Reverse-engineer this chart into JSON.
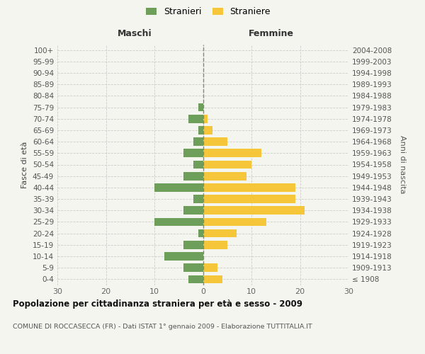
{
  "age_groups": [
    "100+",
    "95-99",
    "90-94",
    "85-89",
    "80-84",
    "75-79",
    "70-74",
    "65-69",
    "60-64",
    "55-59",
    "50-54",
    "45-49",
    "40-44",
    "35-39",
    "30-34",
    "25-29",
    "20-24",
    "15-19",
    "10-14",
    "5-9",
    "0-4"
  ],
  "birth_years": [
    "≤ 1908",
    "1909-1913",
    "1914-1918",
    "1919-1923",
    "1924-1928",
    "1929-1933",
    "1934-1938",
    "1939-1943",
    "1944-1948",
    "1949-1953",
    "1954-1958",
    "1959-1963",
    "1964-1968",
    "1969-1973",
    "1974-1978",
    "1979-1983",
    "1984-1988",
    "1989-1993",
    "1994-1998",
    "1999-2003",
    "2004-2008"
  ],
  "maschi": [
    0,
    0,
    0,
    0,
    0,
    1,
    3,
    1,
    2,
    4,
    2,
    4,
    10,
    2,
    4,
    10,
    1,
    4,
    8,
    4,
    3
  ],
  "femmine": [
    0,
    0,
    0,
    0,
    0,
    0,
    1,
    2,
    5,
    12,
    10,
    9,
    19,
    19,
    21,
    13,
    7,
    5,
    0,
    3,
    4
  ],
  "maschi_color": "#6d9e5a",
  "femmine_color": "#f5c53a",
  "background_color": "#f5f5f0",
  "grid_color": "#cccccc",
  "dashed_color": "#888866",
  "title": "Popolazione per cittadinanza straniera per età e sesso - 2009",
  "subtitle": "COMUNE DI ROCCASECCA (FR) - Dati ISTAT 1° gennaio 2009 - Elaborazione TUTTITALIA.IT",
  "legend_stranieri": "Stranieri",
  "legend_straniere": "Straniere",
  "col_left": "Maschi",
  "col_right": "Femmine",
  "ylabel_left": "Fasce di età",
  "ylabel_right": "Anni di nascita",
  "xlim": 30
}
